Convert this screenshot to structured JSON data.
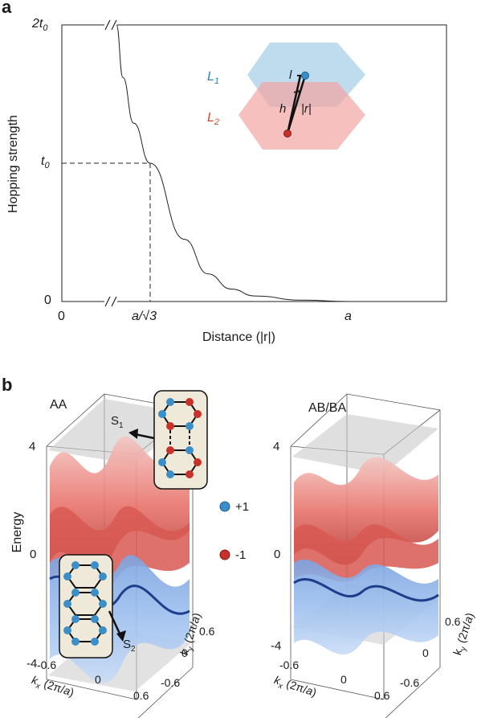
{
  "panel_a": {
    "letter": "a",
    "ylabel": "Hopping strength",
    "xlabel": "Distance (|r|)",
    "yticks": [
      "2t0",
      "t0",
      "0"
    ],
    "xticks": [
      "0",
      "a/√3",
      "a"
    ],
    "inset": {
      "layer1": "L1",
      "layer2": "L2",
      "l": "l",
      "h": "h",
      "r": "|r|"
    }
  },
  "panel_b": {
    "letter": "b",
    "left_title": "AA",
    "right_title": "AB/BA",
    "ylabel": "Energy",
    "energy_ticks": [
      "4",
      "0",
      "-4"
    ],
    "kx_ticks": [
      "-0.6",
      "0",
      "0.6"
    ],
    "ky_ticks": [
      "0.6",
      "0",
      "-0.6"
    ],
    "kx_label": "kx (2π/a)",
    "ky_label": "ky (2π/a)",
    "s1": "S1",
    "s2": "S2",
    "legend": [
      {
        "label": "+1",
        "color": "#3a8fc8"
      },
      {
        "label": "-1",
        "color": "#c8322a"
      }
    ]
  },
  "chart_data": [
    {
      "type": "line",
      "xlabel": "Distance (|r|)",
      "ylabel": "Hopping strength",
      "x_ticks": [
        "0",
        "a/√3",
        "a"
      ],
      "y_ticks": [
        "0",
        "t0",
        "2t0"
      ],
      "series": [
        {
          "x": [
            0.42,
            0.45,
            0.5,
            0.577,
            0.65,
            0.7,
            0.75,
            0.8,
            0.9,
            1.0,
            1.2
          ],
          "y": [
            2.0,
            1.62,
            1.29,
            1.0,
            0.45,
            0.2,
            0.09,
            0.04,
            0.01,
            0.0,
            0.0
          ]
        }
      ],
      "reference": {
        "x": 0.577,
        "y": 1.0
      },
      "grid": false
    }
  ]
}
